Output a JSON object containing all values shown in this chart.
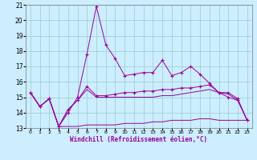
{
  "x": [
    0,
    1,
    2,
    3,
    4,
    5,
    6,
    7,
    8,
    9,
    10,
    11,
    12,
    13,
    14,
    15,
    16,
    17,
    18,
    19,
    20,
    21,
    22,
    23
  ],
  "line1": [
    15.3,
    14.4,
    14.9,
    13.1,
    14.0,
    15.0,
    17.8,
    20.9,
    18.4,
    17.5,
    16.4,
    16.5,
    16.6,
    16.6,
    17.4,
    16.4,
    16.6,
    17.0,
    16.5,
    15.9,
    15.3,
    15.0,
    14.8,
    13.5
  ],
  "line2": [
    15.3,
    14.4,
    14.9,
    13.1,
    14.2,
    14.8,
    15.7,
    15.1,
    15.1,
    15.2,
    15.3,
    15.3,
    15.4,
    15.4,
    15.5,
    15.5,
    15.6,
    15.6,
    15.7,
    15.8,
    15.3,
    15.3,
    14.9,
    13.5
  ],
  "line3": [
    15.3,
    14.4,
    14.9,
    13.1,
    14.2,
    14.8,
    15.5,
    15.0,
    15.0,
    15.0,
    15.0,
    15.0,
    15.0,
    15.0,
    15.1,
    15.1,
    15.2,
    15.3,
    15.4,
    15.5,
    15.3,
    15.2,
    14.8,
    13.5
  ],
  "line4": [
    15.3,
    14.4,
    14.9,
    13.1,
    13.1,
    13.1,
    13.2,
    13.2,
    13.2,
    13.2,
    13.3,
    13.3,
    13.3,
    13.4,
    13.4,
    13.5,
    13.5,
    13.5,
    13.6,
    13.6,
    13.5,
    13.5,
    13.5,
    13.5
  ],
  "color_main": "#990099",
  "bg_color": "#cceeff",
  "grid_color": "#99cccc",
  "xlabel": "Windchill (Refroidissement éolien,°C)",
  "xlim": [
    -0.5,
    23.5
  ],
  "ylim": [
    13,
    21
  ],
  "yticks": [
    13,
    14,
    15,
    16,
    17,
    18,
    19,
    20,
    21
  ],
  "xticks": [
    0,
    1,
    2,
    3,
    4,
    5,
    6,
    7,
    8,
    9,
    10,
    11,
    12,
    13,
    14,
    15,
    16,
    17,
    18,
    19,
    20,
    21,
    22,
    23
  ]
}
